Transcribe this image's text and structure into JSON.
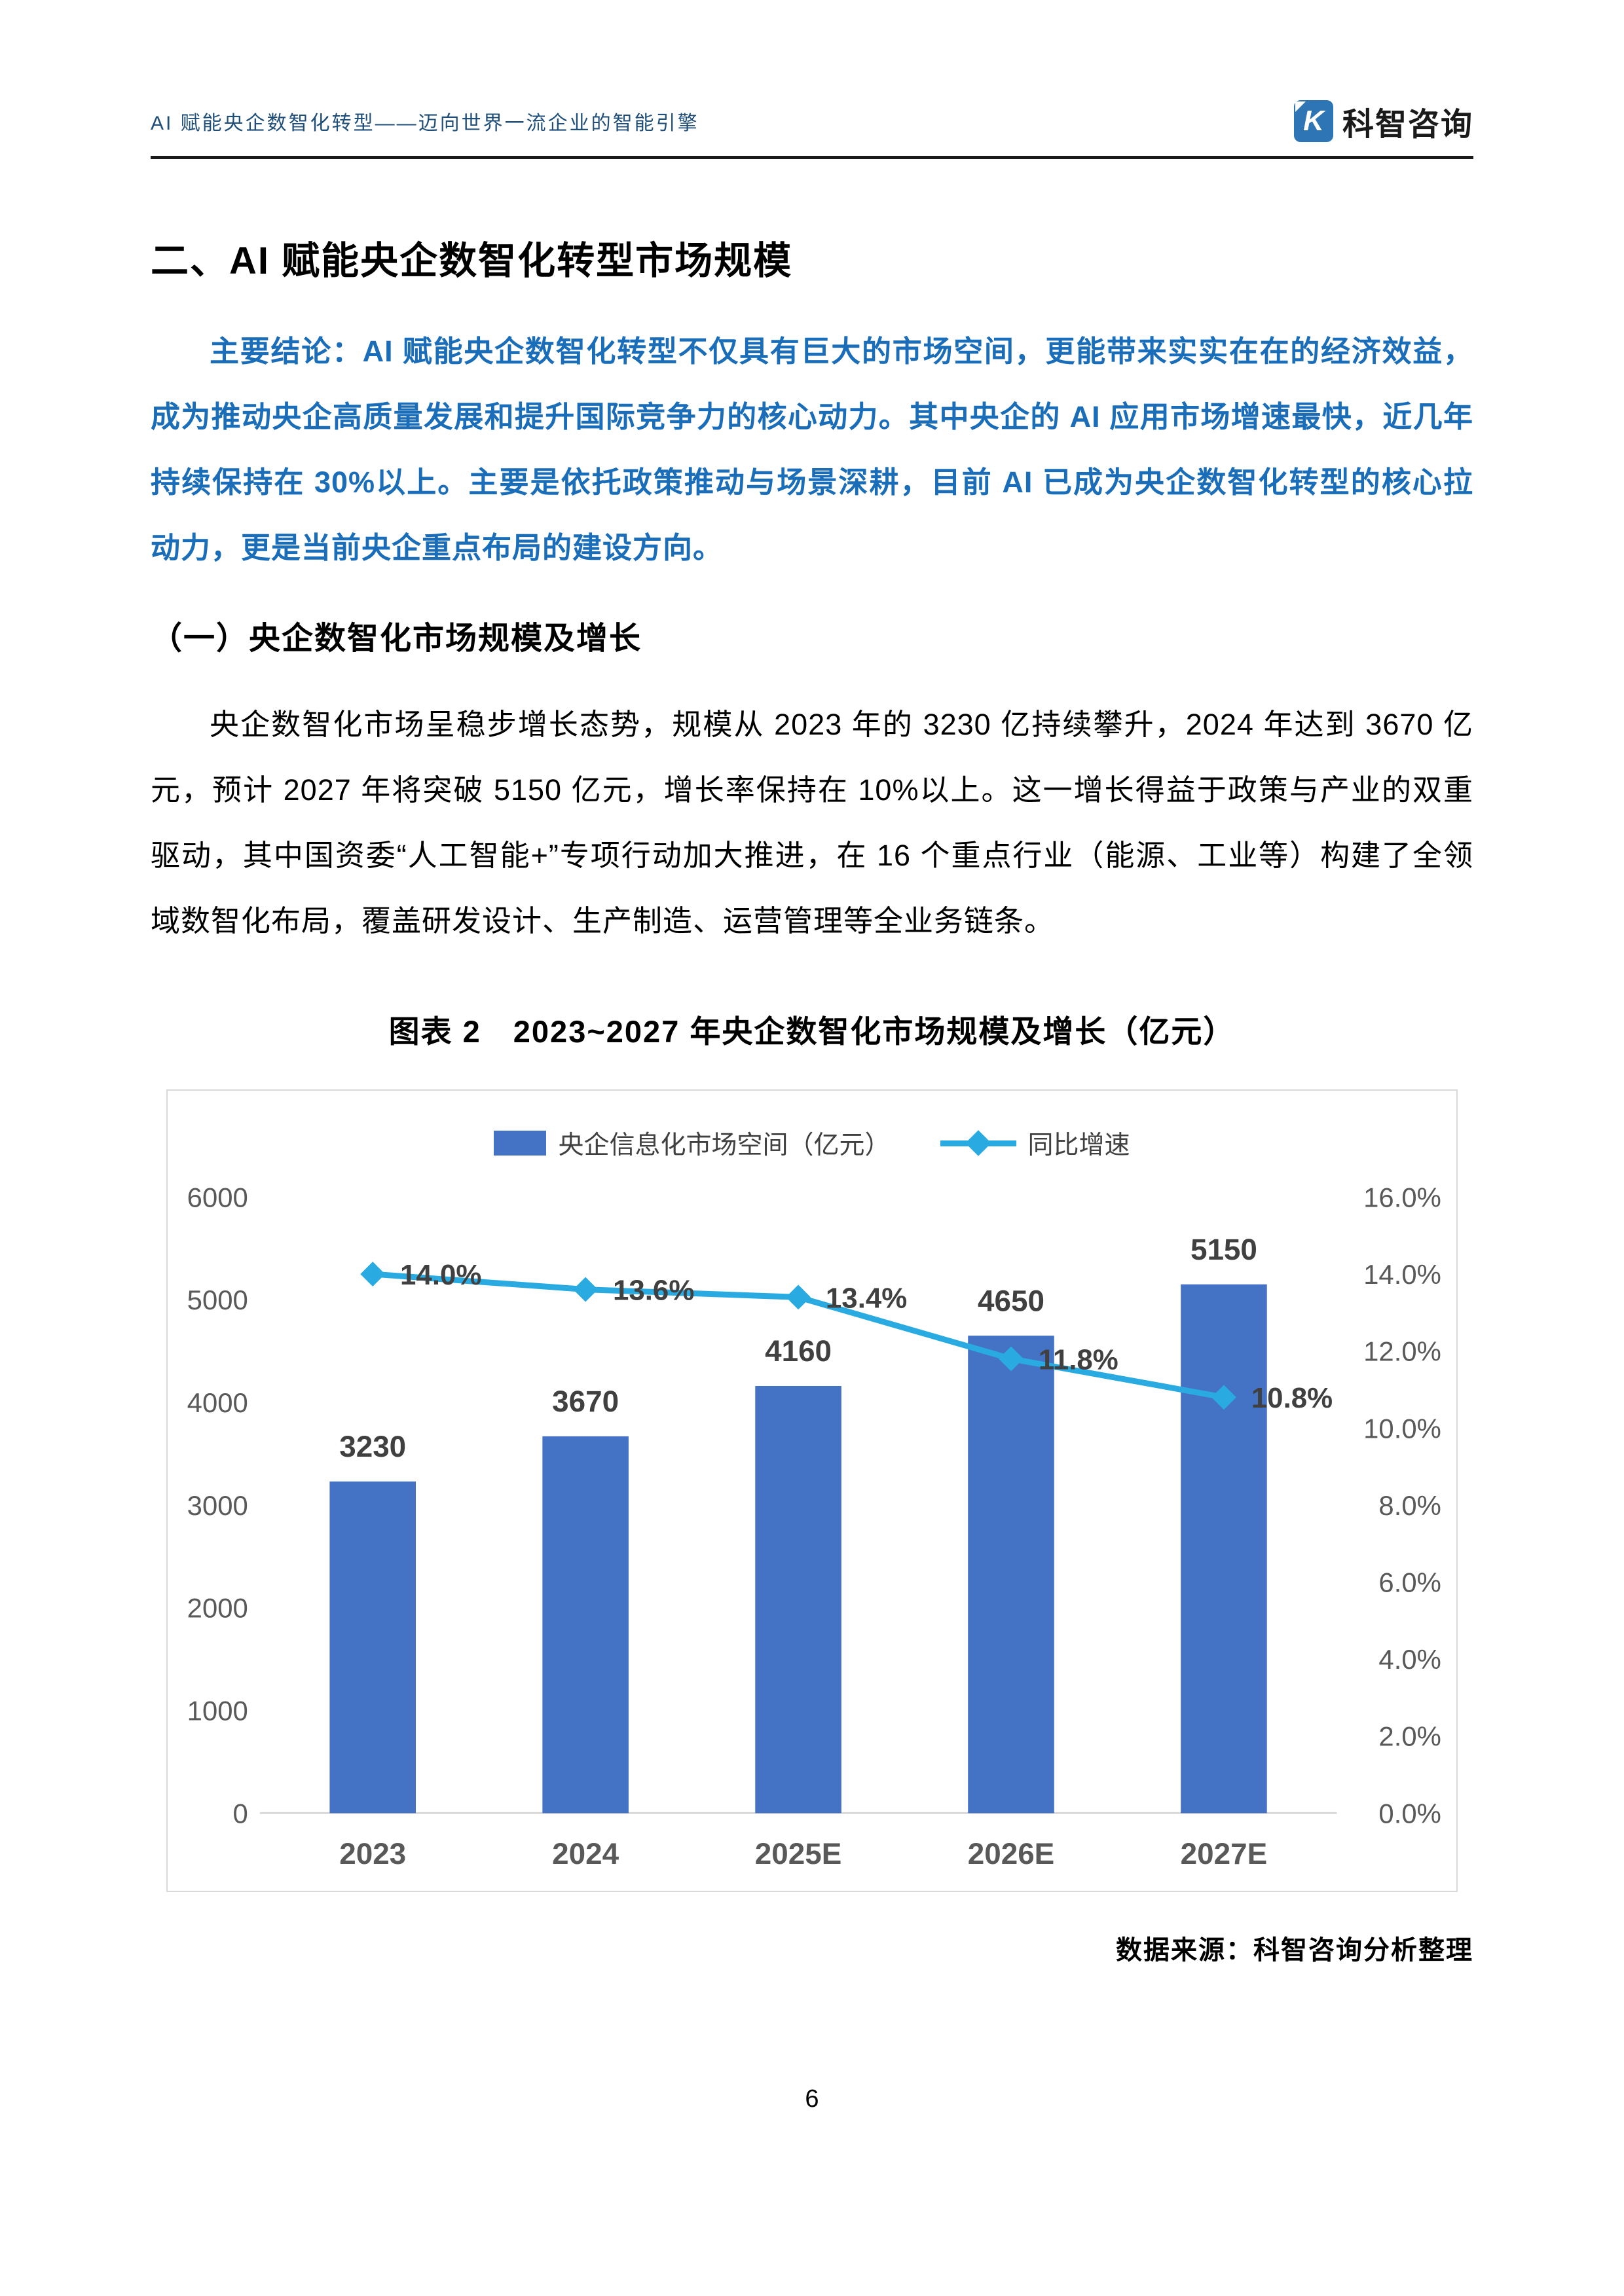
{
  "page": {
    "number": "6"
  },
  "header": {
    "title": "AI 赋能央企数智化转型——迈向世界一流企业的智能引擎",
    "logo_text": "科智咨询",
    "logo_letter": "K",
    "logo_color": "#2E75B6"
  },
  "headings": {
    "section": "二、AI 赋能央企数智化转型市场规模",
    "subsection": "（一）央企数智化市场规模及增长"
  },
  "paragraphs": {
    "key_conclusion": "主要结论：AI 赋能央企数智化转型不仅具有巨大的市场空间，更能带来实实在在的经济效益，成为推动央企高质量发展和提升国际竞争力的核心动力。其中央企的 AI 应用市场增速最快，近几年持续保持在 30%以上。主要是依托政策推动与场景深耕，目前 AI 已成为央企数智化转型的核心拉动力，更是当前央企重点布局的建设方向。",
    "body": "央企数智化市场呈稳步增长态势，规模从 2023 年的 3230 亿持续攀升，2024 年达到 3670 亿元，预计 2027 年将突破 5150 亿元，增长率保持在 10%以上。这一增长得益于政策与产业的双重驱动，其中国资委“人工智能+”专项行动加大推进，在 16 个重点行业（能源、工业等）构建了全领域数智化布局，覆盖研发设计、生产制造、运营管理等全业务链条。"
  },
  "chart": {
    "title": "图表 2　2023~2027 年央企数智化市场规模及增长（亿元）",
    "source": "数据来源：科智咨询分析整理"
  },
  "chart_data": {
    "type": "combo",
    "title": "2023~2027 年央企数智化市场规模及增长（亿元）",
    "categories": [
      "2023",
      "2024",
      "2025E",
      "2026E",
      "2027E"
    ],
    "series": [
      {
        "name": "央企信息化市场空间（亿元）",
        "type": "bar",
        "axis": "left",
        "color": "#4472C4",
        "values": [
          3230,
          3670,
          4160,
          4650,
          5150
        ],
        "labels": [
          "3230",
          "3670",
          "4160",
          "4650",
          "5150"
        ]
      },
      {
        "name": "同比增速",
        "type": "line",
        "axis": "right",
        "color": "#29ABE2",
        "values": [
          14.0,
          13.6,
          13.4,
          11.8,
          10.8
        ],
        "labels": [
          "14.0%",
          "13.6%",
          "13.4%",
          "11.8%",
          "10.8%"
        ]
      }
    ],
    "left_axis": {
      "min": 0,
      "max": 6000,
      "ticks": [
        "6000",
        "5000",
        "4000",
        "3000",
        "2000",
        "1000",
        "0"
      ]
    },
    "right_axis": {
      "min": 0,
      "max": 16,
      "ticks": [
        "16.0%",
        "14.0%",
        "12.0%",
        "10.0%",
        "8.0%",
        "6.0%",
        "4.0%",
        "2.0%",
        "0.0%"
      ]
    },
    "grid": false,
    "legend_position": "top",
    "label_color": "#404040",
    "tick_color": "#595959",
    "axis_line_color": "#D9D9D9"
  }
}
